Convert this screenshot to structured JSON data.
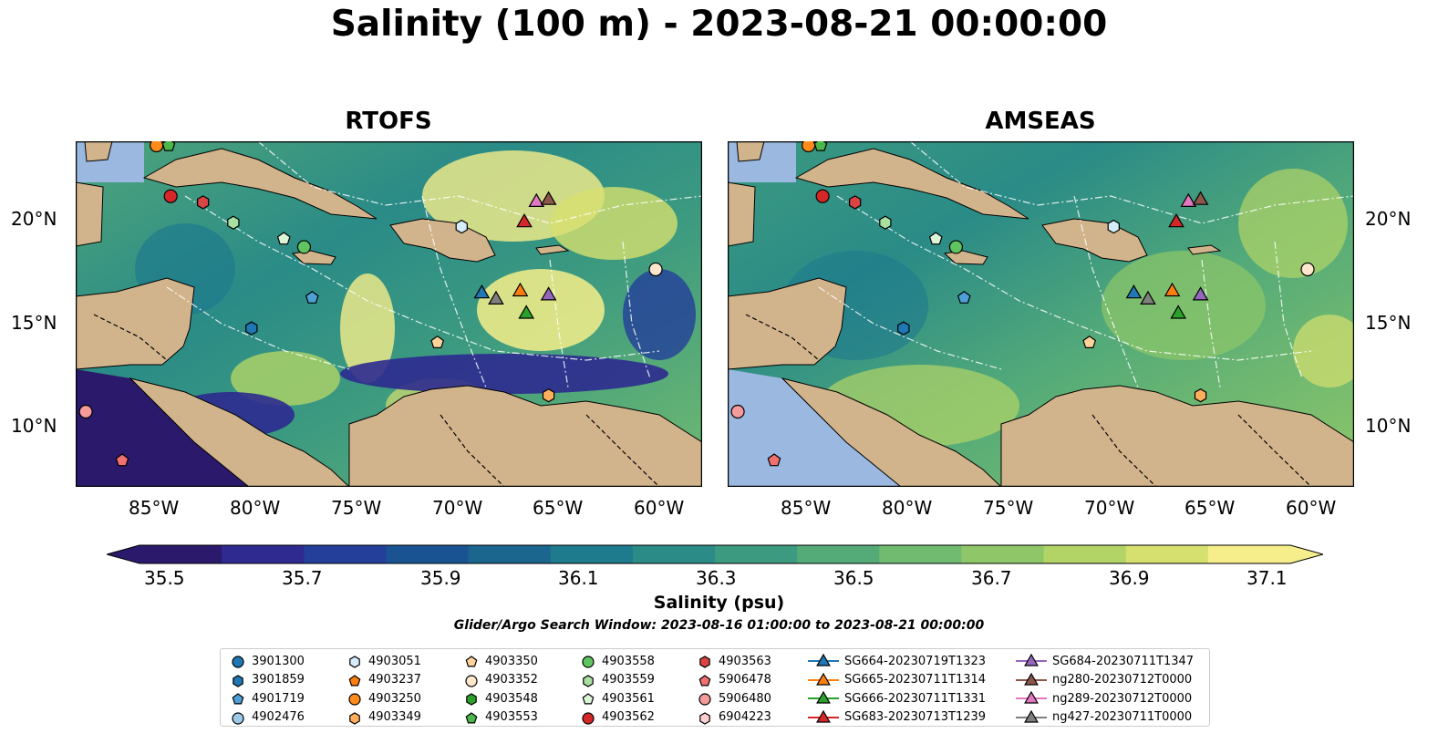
{
  "title": "Salinity (100 m) - 2023-08-21 00:00:00",
  "panels": [
    {
      "title": "RTOFS"
    },
    {
      "title": "AMSEAS"
    }
  ],
  "lat_ticks": [
    "20°N",
    "15°N",
    "10°N"
  ],
  "lon_ticks": [
    "85°W",
    "80°W",
    "75°W",
    "70°W",
    "65°W",
    "60°W"
  ],
  "colorbar": {
    "label": "Salinity (psu)",
    "ticks": [
      "35.5",
      "35.7",
      "35.9",
      "36.1",
      "36.3",
      "36.5",
      "36.7",
      "36.9",
      "37.1"
    ],
    "colors": [
      "#2b1a6b",
      "#2e2a8f",
      "#233f9a",
      "#1a5392",
      "#1b668f",
      "#1e7a8d",
      "#2a8b87",
      "#3c9a80",
      "#55ab78",
      "#71bb70",
      "#8fc768",
      "#b2d466",
      "#d6e06e",
      "#f6ee8a"
    ]
  },
  "search_window": "Glider/Argo Search Window: 2023-08-16 01:00:00 to 2023-08-21 00:00:00",
  "legend": [
    {
      "label": "3901300",
      "marker": "circle",
      "color": "#1f77b4"
    },
    {
      "label": "3901859",
      "marker": "hexagon",
      "color": "#1f77b4"
    },
    {
      "label": "4901719",
      "marker": "pentagon",
      "color": "#4e9fd6"
    },
    {
      "label": "4902476",
      "marker": "circle",
      "color": "#9ecae9"
    },
    {
      "label": "4903051",
      "marker": "hexagon",
      "color": "#d6ecfa"
    },
    {
      "label": "4903237",
      "marker": "pentagon",
      "color": "#ff7f0e"
    },
    {
      "label": "4903250",
      "marker": "circle",
      "color": "#ff8c1a"
    },
    {
      "label": "4903349",
      "marker": "hexagon",
      "color": "#ffae5c"
    },
    {
      "label": "4903350",
      "marker": "pentagon",
      "color": "#ffd39b"
    },
    {
      "label": "4903352",
      "marker": "circle",
      "color": "#ffe6cc"
    },
    {
      "label": "4903548",
      "marker": "hexagon",
      "color": "#2ca02c"
    },
    {
      "label": "4903553",
      "marker": "pentagon",
      "color": "#4bb84b"
    },
    {
      "label": "4903558",
      "marker": "circle",
      "color": "#5fc45f"
    },
    {
      "label": "4903559",
      "marker": "hexagon",
      "color": "#a8e0a0"
    },
    {
      "label": "4903561",
      "marker": "pentagon",
      "color": "#dcf5d6"
    },
    {
      "label": "4903562",
      "marker": "circle",
      "color": "#d62728"
    },
    {
      "label": "4903563",
      "marker": "hexagon",
      "color": "#d94444"
    },
    {
      "label": "5906478",
      "marker": "pentagon",
      "color": "#f07070"
    },
    {
      "label": "5906480",
      "marker": "circle",
      "color": "#f59b9b"
    },
    {
      "label": "6904223",
      "marker": "hexagon",
      "color": "#fcd0d0"
    },
    {
      "label": "SG664-20230719T1323",
      "marker": "triangle",
      "color": "#1f77b4"
    },
    {
      "label": "SG665-20230711T1314",
      "marker": "triangle",
      "color": "#ff7f0e"
    },
    {
      "label": "SG666-20230711T1331",
      "marker": "triangle",
      "color": "#2ca02c"
    },
    {
      "label": "SG683-20230713T1239",
      "marker": "triangle",
      "color": "#d62728"
    },
    {
      "label": "SG684-20230711T1347",
      "marker": "triangle",
      "color": "#9467bd"
    },
    {
      "label": "ng280-20230712T0000",
      "marker": "triangle",
      "color": "#8c564b"
    },
    {
      "label": "ng289-20230712T0000",
      "marker": "triangle",
      "color": "#e377c2"
    },
    {
      "label": "ng427-20230711T0000",
      "marker": "triangle",
      "color": "#7f7f7f"
    }
  ],
  "map_extent": {
    "lon_min": -89,
    "lon_max": -58,
    "lat_min": 7,
    "lat_max": 24
  },
  "positions": [
    {
      "label": "4903250",
      "lon": -85,
      "lat": 23.8
    },
    {
      "label": "4903553",
      "lon": -84.4,
      "lat": 23.8
    },
    {
      "label": "4903562",
      "lon": -84.3,
      "lat": 21.3
    },
    {
      "label": "4903563",
      "lon": -82.7,
      "lat": 21.0
    },
    {
      "label": "4903559",
      "lon": -81.2,
      "lat": 20.0
    },
    {
      "label": "4903561",
      "lon": -78.7,
      "lat": 19.2
    },
    {
      "label": "4903558",
      "lon": -77.7,
      "lat": 18.8
    },
    {
      "label": "4903051",
      "lon": -69.9,
      "lat": 19.8
    },
    {
      "label": "4901719",
      "lon": -77.3,
      "lat": 16.3
    },
    {
      "label": "3901859",
      "lon": -80.3,
      "lat": 14.8
    },
    {
      "label": "4903350",
      "lon": -71.1,
      "lat": 14.1
    },
    {
      "label": "4903349",
      "lon": -65.6,
      "lat": 11.5
    },
    {
      "label": "4903352",
      "lon": -60.3,
      "lat": 17.7
    },
    {
      "label": "5906480",
      "lon": -88.5,
      "lat": 10.7
    },
    {
      "label": "5906478",
      "lon": -86.7,
      "lat": 8.3
    },
    {
      "label": "SG683-20230713T1239",
      "lon": -66.8,
      "lat": 20.0
    },
    {
      "label": "ng289-20230712T0000",
      "lon": -66.2,
      "lat": 21.0
    },
    {
      "label": "ng280-20230712T0000",
      "lon": -65.6,
      "lat": 21.1
    },
    {
      "label": "SG664-20230719T1323",
      "lon": -68.9,
      "lat": 16.5
    },
    {
      "label": "ng427-20230711T0000",
      "lon": -68.2,
      "lat": 16.2
    },
    {
      "label": "SG665-20230711T1314",
      "lon": -67.0,
      "lat": 16.6
    },
    {
      "label": "SG684-20230711T1347",
      "lon": -65.6,
      "lat": 16.4
    },
    {
      "label": "SG666-20230711T1331",
      "lon": -66.7,
      "lat": 15.5
    }
  ]
}
